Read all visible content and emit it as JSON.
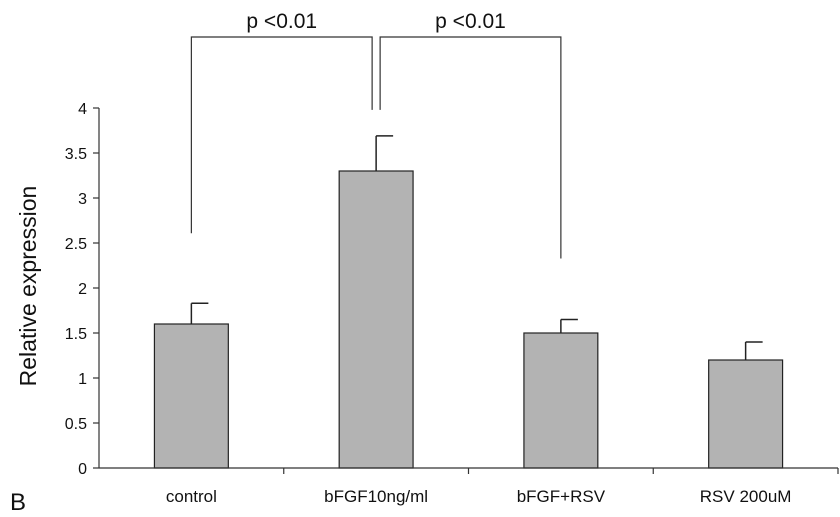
{
  "panel_label": "B",
  "chart_data": {
    "type": "bar",
    "categories": [
      "control",
      "bFGF10ng/ml",
      "bFGF+RSV",
      "RSV 200uM"
    ],
    "values": [
      1.6,
      3.3,
      1.5,
      1.2
    ],
    "error_upper": [
      1.83,
      3.69,
      1.65,
      1.4
    ],
    "ylabel": "Relative expression",
    "xlabel": "",
    "ylim": [
      0,
      4
    ],
    "yticks": [
      "0",
      "0.5",
      "1",
      "1.5",
      "2",
      "2.5",
      "3",
      "3.5",
      "4"
    ],
    "grid": false,
    "bar_color": "#b3b3b3",
    "annotations": [
      {
        "text": "p <0.01",
        "from": 0,
        "to": 1
      },
      {
        "text": "p <0.01",
        "from": 1,
        "to": 2
      }
    ]
  }
}
